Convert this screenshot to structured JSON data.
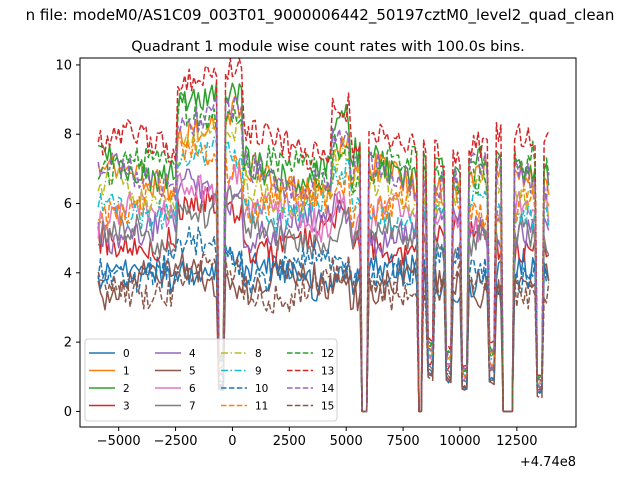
{
  "chart_data": {
    "type": "line",
    "suptitle": "n file: modeM0/AS1C09_003T01_9000006442_50197cztM0_level2_quad_clean",
    "title": "Quadrant 1 module wise count rates with 100.0s bins.",
    "xlabel": "",
    "ylabel": "",
    "x_offset_text": "+4.74e8",
    "xlim": [
      -6700,
      15100
    ],
    "ylim": [
      -0.45,
      10.2
    ],
    "x_ticks": [
      -5000,
      -2500,
      0,
      2500,
      5000,
      7500,
      10000,
      12500
    ],
    "x_tick_labels": [
      "−5000",
      "−2500",
      "0",
      "2500",
      "5000",
      "7500",
      "10000",
      "12500"
    ],
    "y_ticks": [
      0,
      2,
      4,
      6,
      8,
      10
    ],
    "y_tick_labels": [
      "0",
      "2",
      "4",
      "6",
      "8",
      "10"
    ],
    "x_range": [
      -5900,
      13900
    ],
    "bin_width_s": 100,
    "gaps": [
      [
        5700,
        5950
      ],
      [
        8200,
        8300
      ],
      [
        11900,
        12300
      ]
    ],
    "dips": [
      {
        "x": -500,
        "depth": 0.5
      },
      {
        "x": 8700,
        "depth": 0.8
      },
      {
        "x": 9500,
        "depth": 0.7
      },
      {
        "x": 10200,
        "depth": 0.5
      },
      {
        "x": 11400,
        "depth": 0.7
      },
      {
        "x": 13500,
        "depth": 0.4
      }
    ],
    "legend_location": "lower left",
    "series": [
      {
        "name": "0",
        "color": "#1f77b4",
        "dash": "solid",
        "base": 3.9
      },
      {
        "name": "1",
        "color": "#ff7f0e",
        "dash": "solid",
        "base": 6.7
      },
      {
        "name": "2",
        "color": "#2ca02c",
        "dash": "solid",
        "base": 7.1
      },
      {
        "name": "3",
        "color": "#d62728",
        "dash": "solid",
        "base": 4.9
      },
      {
        "name": "4",
        "color": "#9467bd",
        "dash": "solid",
        "base": 5.3
      },
      {
        "name": "5",
        "color": "#8c564b",
        "dash": "solid",
        "base": 3.7
      },
      {
        "name": "6",
        "color": "#e377c2",
        "dash": "solid",
        "base": 5.6
      },
      {
        "name": "7",
        "color": "#7f7f7f",
        "dash": "solid",
        "base": 5.0
      },
      {
        "name": "8",
        "color": "#bcbd22",
        "dash": "dashdot",
        "base": 6.3
      },
      {
        "name": "9",
        "color": "#17becf",
        "dash": "dashdot",
        "base": 5.9
      },
      {
        "name": "10",
        "color": "#1f77b4",
        "dash": "dashed",
        "base": 4.1
      },
      {
        "name": "11",
        "color": "#ff7f0e",
        "dash": "dashed",
        "base": 6.0
      },
      {
        "name": "12",
        "color": "#2ca02c",
        "dash": "dashed",
        "base": 7.0
      },
      {
        "name": "13",
        "color": "#d62728",
        "dash": "dashed",
        "base": 7.7
      },
      {
        "name": "14",
        "color": "#9467bd",
        "dash": "dashed",
        "base": 6.8
      },
      {
        "name": "15",
        "color": "#8c564b",
        "dash": "dashed",
        "base": 3.6
      }
    ]
  }
}
